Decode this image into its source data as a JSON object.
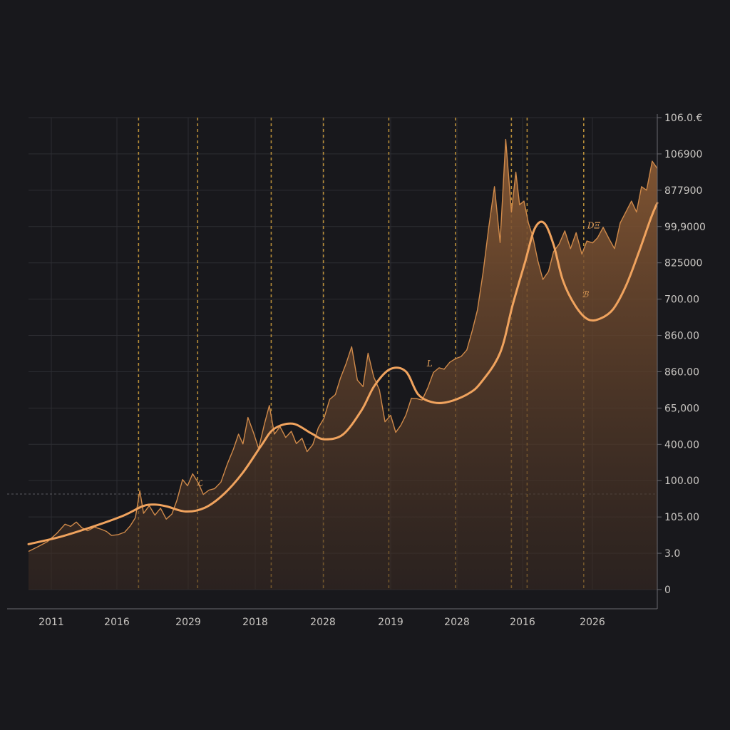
{
  "chart_data": {
    "type": "line",
    "title": "",
    "xlabel": "",
    "ylabel": "",
    "grid": true,
    "legend": "none",
    "x_tick_labels": [
      "2011",
      "2016",
      "2029",
      "2018",
      "2028",
      "2019",
      "2028",
      "2016",
      "2026"
    ],
    "y_tick_labels": [
      "0",
      "3.0",
      "105.00",
      "100.00",
      "400.00",
      "65,000",
      "860.00",
      "860.00",
      "700.00",
      "825000",
      "99,9000",
      "877900",
      "106900",
      "106.0.€"
    ],
    "ylim": [
      0,
      13
    ],
    "xlim": [
      0,
      100
    ],
    "event_markers_x": [
      17.5,
      26.9,
      38.6,
      46.9,
      57.3,
      67.9,
      76.8,
      79.3,
      88.3
    ],
    "annotations": [
      {
        "text": "ℒ",
        "x": 27.2,
        "y": 2.85
      },
      {
        "text": "L",
        "x": 63.8,
        "y": 6.15
      },
      {
        "text": "ℬ",
        "x": 88.5,
        "y": 8.05
      },
      {
        "text": "DΞ",
        "x": 89.9,
        "y": 9.95
      }
    ],
    "series": [
      {
        "style": "volatile",
        "x": [
          0,
          1.5,
          3,
          4.5,
          5.8,
          6.7,
          7.6,
          8.5,
          9.4,
          10.5,
          11.6,
          12.4,
          13.2,
          14.2,
          15.3,
          16.2,
          17.0,
          17.7,
          18.3,
          19.2,
          20.1,
          21.0,
          21.9,
          22.8,
          23.6,
          24.5,
          25.3,
          26.1,
          27.0,
          27.8,
          28.7,
          29.6,
          30.6,
          31.6,
          32.6,
          33.4,
          34.1,
          34.9,
          35.8,
          36.6,
          37.5,
          38.3,
          39.1,
          40.0,
          40.9,
          41.8,
          42.6,
          43.5,
          44.3,
          45.2,
          46.1,
          47.0,
          47.9,
          48.8,
          49.6,
          50.5,
          51.4,
          52.3,
          53.2,
          54.0,
          54.9,
          55.8,
          56.7,
          57.6,
          58.4,
          59.2,
          60.0,
          60.9,
          61.7,
          62.6,
          63.5,
          64.4,
          65.3,
          66.1,
          67.0,
          67.9,
          68.8,
          69.7,
          70.6,
          71.4,
          72.3,
          73.2,
          74.1,
          75.0,
          75.9,
          76.8,
          77.5,
          78.1,
          78.8,
          79.5,
          80.2,
          81.0,
          81.8,
          82.7,
          83.5,
          84.4,
          85.3,
          86.2,
          87.1,
          88.0,
          88.8,
          89.7,
          90.5,
          91.4,
          92.3,
          93.2,
          94.1,
          95.0,
          95.9,
          96.7,
          97.5,
          98.3,
          99.2,
          100
        ],
        "values": [
          1.05,
          1.18,
          1.32,
          1.55,
          1.8,
          1.74,
          1.86,
          1.7,
          1.62,
          1.72,
          1.66,
          1.6,
          1.49,
          1.51,
          1.58,
          1.76,
          1.98,
          2.72,
          2.1,
          2.31,
          2.05,
          2.24,
          1.94,
          2.08,
          2.46,
          3.03,
          2.86,
          3.19,
          2.94,
          2.62,
          2.74,
          2.78,
          2.96,
          3.45,
          3.87,
          4.28,
          4.01,
          4.74,
          4.31,
          3.88,
          4.55,
          5.07,
          4.28,
          4.49,
          4.19,
          4.36,
          4.02,
          4.17,
          3.8,
          3.99,
          4.46,
          4.72,
          5.24,
          5.37,
          5.82,
          6.22,
          6.69,
          5.77,
          5.59,
          6.51,
          5.86,
          5.5,
          4.62,
          4.8,
          4.33,
          4.52,
          4.8,
          5.27,
          5.26,
          5.22,
          5.56,
          5.98,
          6.11,
          6.07,
          6.26,
          6.36,
          6.42,
          6.6,
          7.15,
          7.7,
          8.74,
          9.98,
          11.1,
          9.56,
          12.4,
          10.4,
          11.5,
          10.6,
          10.7,
          10.1,
          9.72,
          9.06,
          8.54,
          8.76,
          9.31,
          9.52,
          9.88,
          9.39,
          9.83,
          9.24,
          9.6,
          9.55,
          9.69,
          9.98,
          9.67,
          9.39,
          10.1,
          10.4,
          10.7,
          10.4,
          11.1,
          11.0,
          11.8,
          11.6
        ]
      },
      {
        "style": "smooth",
        "x": [
          0,
          5,
          10,
          15,
          18.2,
          20.1,
          22,
          25,
          28,
          31,
          34,
          37,
          39,
          42,
          45,
          47,
          50,
          53,
          55,
          57.5,
          60,
          62,
          64.5,
          67,
          70,
          72,
          75,
          77,
          79,
          80.5,
          82,
          83.5,
          85,
          87,
          89,
          91,
          93,
          95,
          97,
          99,
          100
        ],
        "values": [
          1.25,
          1.45,
          1.72,
          2.03,
          2.3,
          2.34,
          2.29,
          2.15,
          2.25,
          2.62,
          3.2,
          3.96,
          4.42,
          4.57,
          4.3,
          4.14,
          4.27,
          4.95,
          5.61,
          6.07,
          6.01,
          5.37,
          5.15,
          5.18,
          5.4,
          5.71,
          6.52,
          7.84,
          9.04,
          9.94,
          10.1,
          9.5,
          8.51,
          7.81,
          7.44,
          7.47,
          7.73,
          8.36,
          9.26,
          10.24,
          10.65
        ]
      }
    ]
  },
  "colors": {
    "background": "#18181c",
    "line": "#f0a35e",
    "volatile": "#d08a4a",
    "fill_top": "#8a5a34",
    "grid": "#2c2d32",
    "marker": "#c99a3c",
    "text": "#c9c6c2"
  }
}
